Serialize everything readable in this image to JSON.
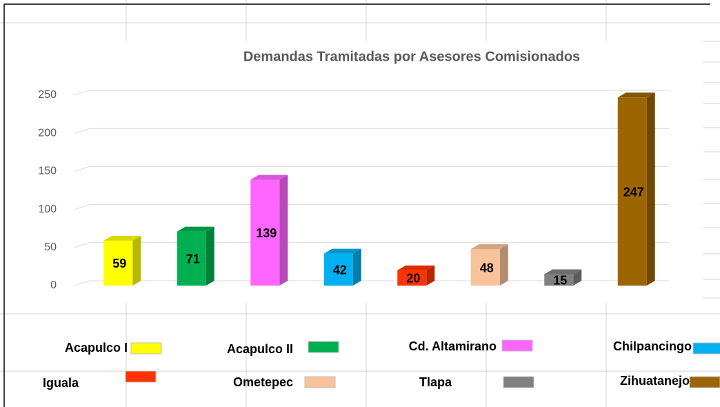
{
  "chart_data": {
    "type": "bar3d",
    "title": "Demandas Tramitadas por Asesores Comisionados",
    "categories": [
      "Acapulco I",
      "Acapulco II",
      "Cd. Altamirano",
      "Chilpancingo",
      "Iguala",
      "Ometepec",
      "Tlapa",
      "Zihuatanejo"
    ],
    "values": [
      59,
      71,
      139,
      42,
      20,
      48,
      15,
      247
    ],
    "colors": [
      "#ffff00",
      "#00b050",
      "#ff66ff",
      "#00b0f0",
      "#ff3300",
      "#f8c39b",
      "#808080",
      "#9c6500"
    ],
    "ylim": [
      0,
      250
    ],
    "yticks": [
      0,
      50,
      100,
      150,
      200,
      250
    ],
    "grid": true
  }
}
